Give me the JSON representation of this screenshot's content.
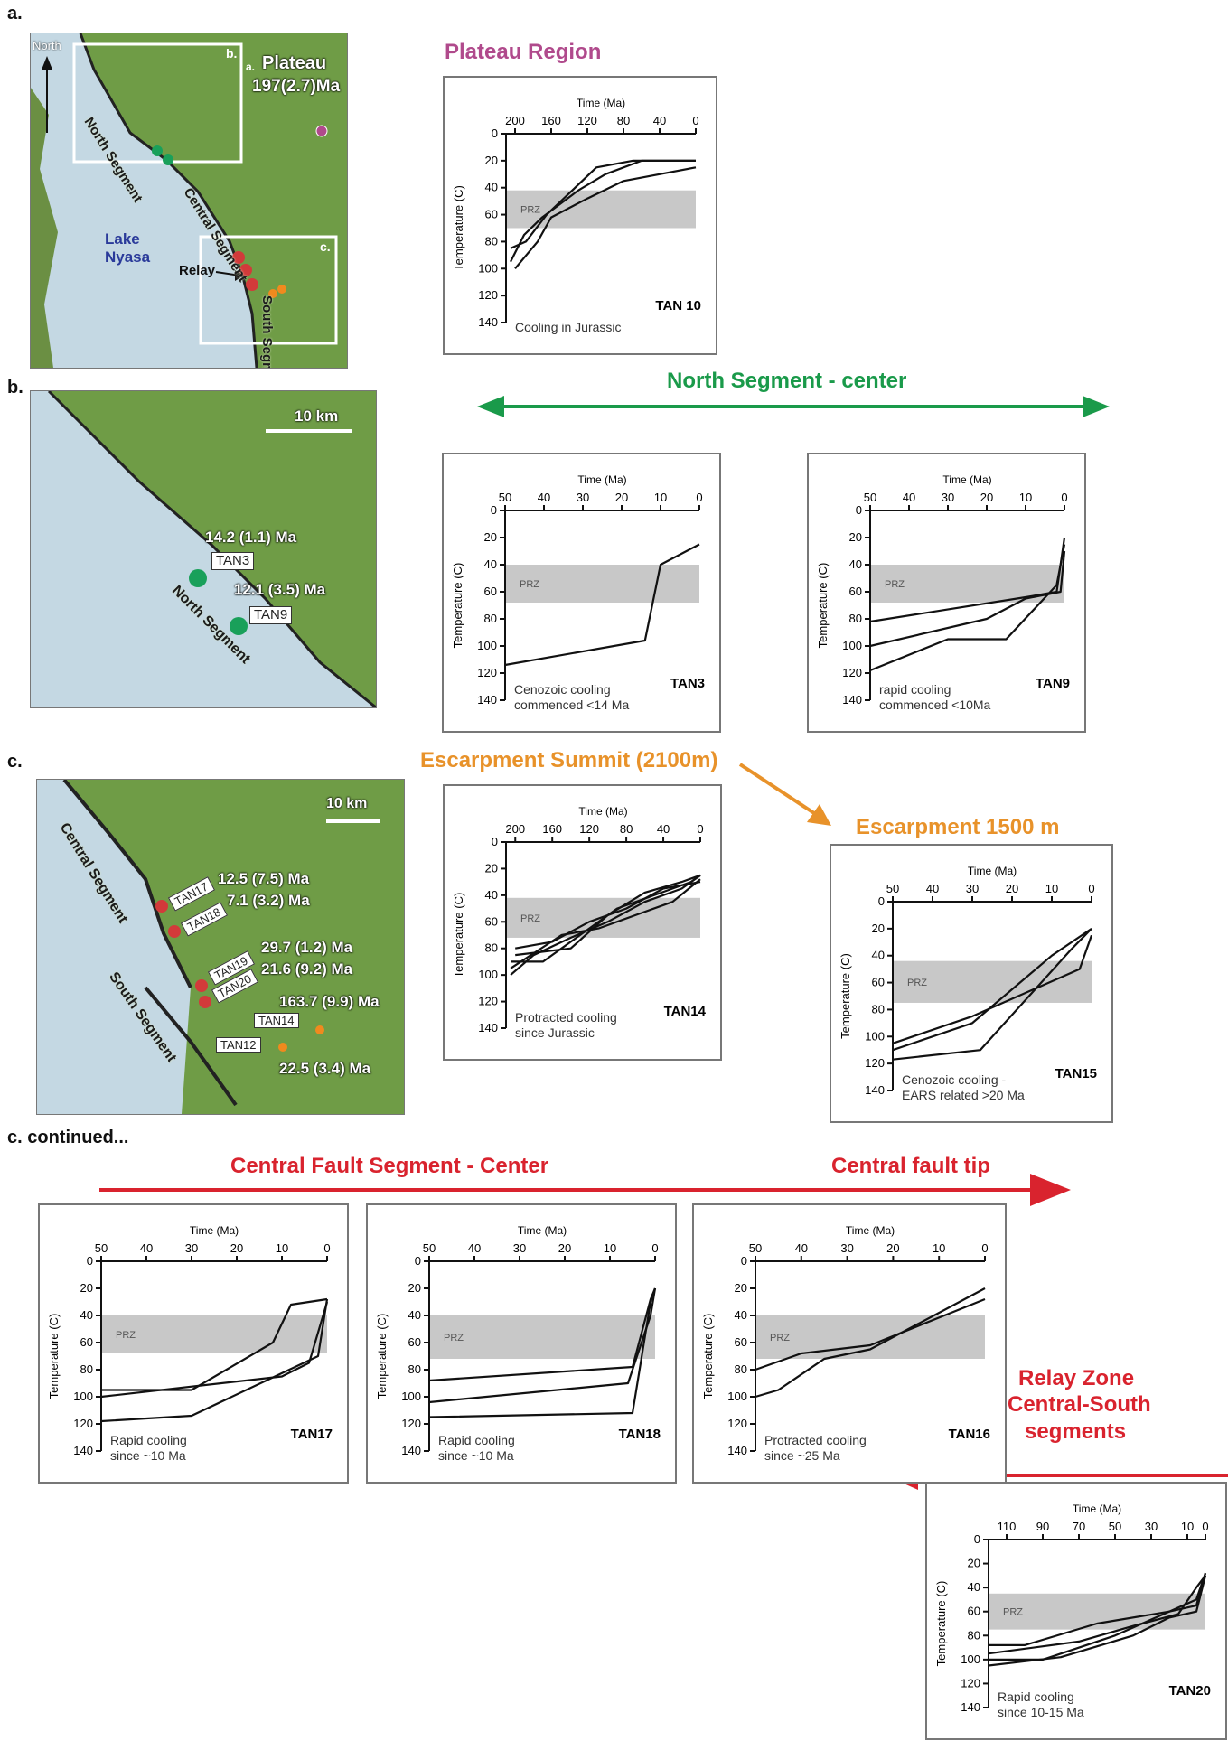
{
  "panels": {
    "a": "a.",
    "b": "b.",
    "c": "c.",
    "c_cont": "c. continued..."
  },
  "map_a": {
    "north": "North",
    "box_b": "b.",
    "box_c": "c.",
    "box_a": "a.",
    "plateau": "Plateau",
    "plateau_age": "197(2.7)Ma",
    "north_segment": "North Segment",
    "central_segment": "Central Segment",
    "south_segment": "South Segment",
    "lake": "Lake Nyasa",
    "relay": "Relay"
  },
  "map_b": {
    "scale": "10 km",
    "age_tan3": "14.2 (1.1) Ma",
    "tan3": "TAN3",
    "age_tan9": "12.1 (3.5) Ma",
    "tan9": "TAN9",
    "north_segment": "North Segment"
  },
  "map_c": {
    "scale": "10 km",
    "central_segment": "Central Segment",
    "south_segment": "South Segment",
    "tan17": "TAN17",
    "tan18": "TAN18",
    "tan19": "TAN19",
    "tan20": "TAN20",
    "tan14": "TAN14",
    "tan12": "TAN12",
    "age1": "12.5 (7.5) Ma",
    "age2": "7.1 (3.2) Ma",
    "age3": "29.7 (1.2) Ma",
    "age4": "21.6 (9.2) Ma",
    "age5": "163.7 (9.9) Ma",
    "age6": "22.5 (3.4) Ma"
  },
  "sections": {
    "plateau": "Plateau Region",
    "north_center": "North Segment - center",
    "escarp_summit": "Escarpment Summit (2100m)",
    "escarp_1500": "Escarpment 1500 m",
    "central_center": "Central Fault Segment - Center",
    "central_tip": "Central fault tip",
    "relay1": "Relay Zone",
    "relay2": "Central-South",
    "relay3": "segments"
  },
  "colors": {
    "plateau": "#b04a8c",
    "north": "#1a9a4a",
    "escarpment": "#e8922a",
    "central": "#d9232e",
    "prz": "#c8c8c8",
    "site_green": "#19a05a",
    "site_red": "#d23a3a",
    "site_orange": "#f08a1e",
    "lake": "#c4d8e3",
    "land": "#6f9c46"
  },
  "chart_data": [
    {
      "id": "TAN10",
      "type": "line",
      "xlabel": "Time (Ma)",
      "ylabel": "Temperature (C)",
      "xlim": [
        210,
        0
      ],
      "ylim": [
        0,
        140
      ],
      "xticks": [
        200,
        160,
        120,
        80,
        40,
        0
      ],
      "yticks": [
        0,
        20,
        40,
        60,
        80,
        100,
        120,
        140
      ],
      "prz": [
        42,
        70
      ],
      "prz_label": "PRZ",
      "sample": "TAN 10",
      "caption": [
        "Cooling in Jurassic"
      ],
      "series": [
        {
          "x": [
            205,
            190,
            170,
            130,
            100,
            60,
            0
          ],
          "y": [
            95,
            75,
            62,
            42,
            30,
            20,
            20
          ]
        },
        {
          "x": [
            205,
            188,
            165,
            110,
            70,
            30,
            0
          ],
          "y": [
            85,
            80,
            60,
            25,
            20,
            20,
            20
          ]
        },
        {
          "x": [
            200,
            175,
            160,
            120,
            80,
            40,
            0
          ],
          "y": [
            100,
            80,
            62,
            48,
            35,
            30,
            25
          ]
        }
      ]
    },
    {
      "id": "TAN3",
      "type": "line",
      "xlabel": "Time (Ma)",
      "ylabel": "Temperature (C)",
      "xlim": [
        50,
        0
      ],
      "ylim": [
        0,
        140
      ],
      "xticks": [
        50,
        40,
        30,
        20,
        10,
        0
      ],
      "yticks": [
        0,
        20,
        40,
        60,
        80,
        100,
        120,
        140
      ],
      "prz": [
        40,
        68
      ],
      "prz_label": "PRZ",
      "sample": "TAN3",
      "caption": [
        "Cenozoic cooling",
        "commenced <14 Ma"
      ],
      "series": [
        {
          "x": [
            50,
            14,
            10,
            0
          ],
          "y": [
            114,
            96,
            40,
            25
          ]
        }
      ]
    },
    {
      "id": "TAN9",
      "type": "line",
      "xlabel": "Time (Ma)",
      "ylabel": "Temperature (C)",
      "xlim": [
        50,
        0
      ],
      "ylim": [
        0,
        140
      ],
      "xticks": [
        50,
        40,
        30,
        20,
        10,
        0
      ],
      "yticks": [
        0,
        20,
        40,
        60,
        80,
        100,
        120,
        140
      ],
      "prz": [
        40,
        68
      ],
      "prz_label": "PRZ",
      "sample": "TAN9",
      "caption": [
        "rapid cooling",
        "commenced <10Ma"
      ],
      "series": [
        {
          "x": [
            50,
            10,
            2,
            0
          ],
          "y": [
            82,
            64,
            60,
            20
          ]
        },
        {
          "x": [
            50,
            30,
            15,
            2,
            0
          ],
          "y": [
            118,
            95,
            95,
            55,
            25
          ]
        },
        {
          "x": [
            50,
            20,
            10,
            1,
            0
          ],
          "y": [
            100,
            80,
            65,
            60,
            30
          ]
        }
      ]
    },
    {
      "id": "TAN14",
      "type": "line",
      "xlabel": "Time (Ma)",
      "ylabel": "Temperature (C)",
      "xlim": [
        210,
        0
      ],
      "ylim": [
        0,
        140
      ],
      "xticks": [
        200,
        160,
        120,
        80,
        40,
        0
      ],
      "yticks": [
        0,
        20,
        40,
        60,
        80,
        100,
        120,
        140
      ],
      "prz": [
        42,
        72
      ],
      "prz_label": "PRZ",
      "sample": "TAN14",
      "caption": [
        "Protracted cooling",
        "since Jurassic"
      ],
      "series": [
        {
          "x": [
            205,
            180,
            140,
            100,
            60,
            20,
            0
          ],
          "y": [
            100,
            85,
            72,
            60,
            45,
            35,
            25
          ]
        },
        {
          "x": [
            205,
            170,
            130,
            90,
            50,
            10,
            0
          ],
          "y": [
            90,
            90,
            70,
            50,
            40,
            30,
            25
          ]
        },
        {
          "x": [
            200,
            160,
            120,
            80,
            40,
            0
          ],
          "y": [
            80,
            75,
            60,
            50,
            35,
            30
          ]
        },
        {
          "x": [
            205,
            150,
            110,
            70,
            30,
            0
          ],
          "y": [
            95,
            70,
            65,
            55,
            45,
            28
          ]
        },
        {
          "x": [
            200,
            140,
            100,
            60,
            20,
            0
          ],
          "y": [
            85,
            80,
            55,
            38,
            30,
            25
          ]
        }
      ]
    },
    {
      "id": "TAN15",
      "type": "line",
      "xlabel": "Time (Ma)",
      "ylabel": "Temperature (C)",
      "xlim": [
        50,
        0
      ],
      "ylim": [
        0,
        140
      ],
      "xticks": [
        50,
        40,
        30,
        20,
        10,
        0
      ],
      "yticks": [
        0,
        20,
        40,
        60,
        80,
        100,
        120,
        140
      ],
      "prz": [
        44,
        75
      ],
      "prz_label": "PRZ",
      "sample": "TAN15",
      "caption": [
        "Cenozoic cooling -",
        "EARS related >20 Ma"
      ],
      "series": [
        {
          "x": [
            50,
            30,
            10,
            0
          ],
          "y": [
            110,
            90,
            40,
            20
          ]
        },
        {
          "x": [
            50,
            28,
            5,
            0
          ],
          "y": [
            117,
            110,
            35,
            20
          ]
        },
        {
          "x": [
            50,
            30,
            3,
            0
          ],
          "y": [
            105,
            85,
            50,
            25
          ]
        }
      ]
    },
    {
      "id": "TAN17",
      "type": "line",
      "xlabel": "Time (Ma)",
      "ylabel": "Temperature (C)",
      "xlim": [
        50,
        0
      ],
      "ylim": [
        0,
        140
      ],
      "xticks": [
        50,
        40,
        30,
        20,
        10,
        0
      ],
      "yticks": [
        0,
        20,
        40,
        60,
        80,
        100,
        120,
        140
      ],
      "prz": [
        40,
        68
      ],
      "prz_label": "PRZ",
      "sample": "TAN17",
      "caption": [
        "Rapid cooling",
        "since ~10 Ma"
      ],
      "series": [
        {
          "x": [
            50,
            30,
            12,
            8,
            0
          ],
          "y": [
            95,
            95,
            60,
            32,
            28
          ]
        },
        {
          "x": [
            50,
            30,
            2,
            0
          ],
          "y": [
            118,
            114,
            70,
            28
          ]
        },
        {
          "x": [
            50,
            10,
            4,
            0
          ],
          "y": [
            100,
            85,
            75,
            30
          ]
        }
      ]
    },
    {
      "id": "TAN18",
      "type": "line",
      "xlabel": "Time (Ma)",
      "ylabel": "Temperature (C)",
      "xlim": [
        50,
        0
      ],
      "ylim": [
        0,
        140
      ],
      "xticks": [
        50,
        40,
        30,
        20,
        10,
        0
      ],
      "yticks": [
        0,
        20,
        40,
        60,
        80,
        100,
        120,
        140
      ],
      "prz": [
        40,
        72
      ],
      "prz_label": "PRZ",
      "sample": "TAN18",
      "caption": [
        "Rapid cooling",
        "since ~10 Ma"
      ],
      "series": [
        {
          "x": [
            50,
            5,
            1,
            0
          ],
          "y": [
            88,
            78,
            28,
            20
          ]
        },
        {
          "x": [
            50,
            6,
            1,
            0
          ],
          "y": [
            104,
            90,
            40,
            20
          ]
        },
        {
          "x": [
            50,
            5,
            1,
            0
          ],
          "y": [
            115,
            112,
            30,
            20
          ]
        }
      ]
    },
    {
      "id": "TAN16",
      "type": "line",
      "xlabel": "Time (Ma)",
      "ylabel": "Temperature (C)",
      "xlim": [
        50,
        0
      ],
      "ylim": [
        0,
        140
      ],
      "xticks": [
        50,
        40,
        30,
        20,
        10,
        0
      ],
      "yticks": [
        0,
        20,
        40,
        60,
        80,
        100,
        120,
        140
      ],
      "prz": [
        40,
        72
      ],
      "prz_label": "PRZ",
      "sample": "TAN16",
      "caption": [
        "Protracted cooling",
        "since ~25 Ma"
      ],
      "series": [
        {
          "x": [
            50,
            45,
            35,
            25,
            0
          ],
          "y": [
            100,
            95,
            72,
            65,
            20
          ]
        },
        {
          "x": [
            50,
            40,
            25,
            0
          ],
          "y": [
            80,
            68,
            62,
            28
          ]
        }
      ]
    },
    {
      "id": "TAN20",
      "type": "line",
      "xlabel": "Time (Ma)",
      "ylabel": "Temperature (C)",
      "xlim": [
        120,
        0
      ],
      "ylim": [
        0,
        140
      ],
      "xticks": [
        110,
        90,
        70,
        50,
        30,
        10,
        0
      ],
      "xtick_labels": [
        "110",
        "90",
        "70",
        "50",
        "30",
        "10",
        "0"
      ],
      "yticks": [
        0,
        20,
        40,
        60,
        80,
        100,
        120,
        140
      ],
      "prz": [
        45,
        75
      ],
      "prz_label": "PRZ",
      "sample": "TAN20",
      "caption": [
        "Rapid cooling",
        "since  10-15 Ma"
      ],
      "series": [
        {
          "x": [
            120,
            100,
            60,
            20,
            5,
            0
          ],
          "y": [
            88,
            88,
            70,
            60,
            50,
            28
          ]
        },
        {
          "x": [
            120,
            90,
            50,
            20,
            5,
            0
          ],
          "y": [
            100,
            100,
            80,
            60,
            55,
            28
          ]
        },
        {
          "x": [
            120,
            80,
            40,
            20,
            5,
            0
          ],
          "y": [
            105,
            98,
            80,
            65,
            60,
            30
          ]
        },
        {
          "x": [
            120,
            70,
            40,
            15,
            5,
            0
          ],
          "y": [
            95,
            85,
            72,
            62,
            40,
            30
          ]
        }
      ]
    }
  ]
}
